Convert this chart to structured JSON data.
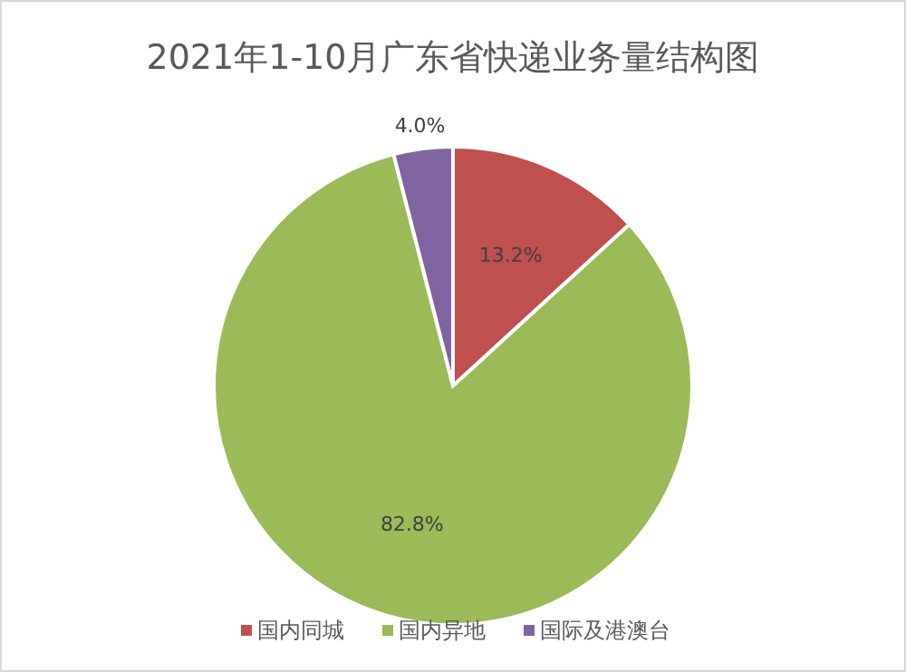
{
  "chart_data": {
    "type": "pie",
    "title": "2021年1-10月广东省快递业务量结构图",
    "categories": [
      "国内同城",
      "国内异地",
      "国际及港澳台"
    ],
    "values": [
      13.2,
      82.8,
      4.0
    ],
    "value_labels": [
      "13.2%",
      "82.8%",
      "4.0%"
    ],
    "colors": [
      "#c0504d",
      "#9bbb59",
      "#8064a2"
    ],
    "legend": "bottom"
  }
}
